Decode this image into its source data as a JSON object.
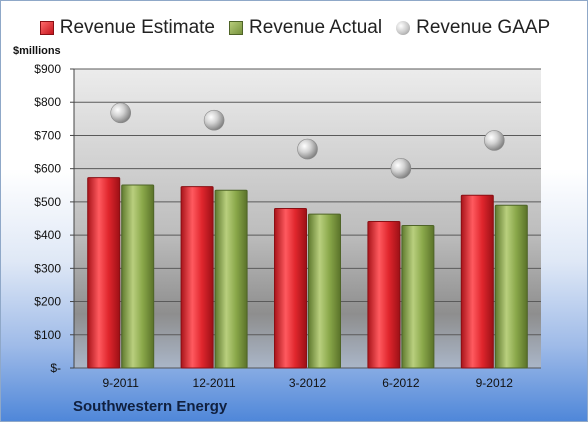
{
  "chart_data": {
    "type": "bar",
    "categories": [
      "9-2011",
      "12-2011",
      "3-2012",
      "6-2012",
      "9-2012"
    ],
    "series": [
      {
        "name": "Revenue Estimate",
        "kind": "bar",
        "color": "#d0262d",
        "values": [
          573,
          546,
          480,
          441,
          520
        ]
      },
      {
        "name": "Revenue Actual",
        "kind": "bar",
        "color": "#8aa84a",
        "values": [
          551,
          535,
          463,
          429,
          490
        ]
      },
      {
        "name": "Revenue GAAP",
        "kind": "marker",
        "color": "#c0c0c0",
        "values": [
          768,
          746,
          659,
          601,
          685
        ]
      }
    ],
    "ylabel": "$millions",
    "ylim": [
      0,
      900
    ],
    "yticks": [
      0,
      100,
      200,
      300,
      400,
      500,
      600,
      700,
      800,
      900
    ],
    "ytick_labels": [
      "$-",
      "$100",
      "$200",
      "$300",
      "$400",
      "$500",
      "$600",
      "$700",
      "$800",
      "$900"
    ],
    "grid": true,
    "legend_position": "top"
  },
  "footer": {
    "company": "Southwestern Energy"
  }
}
